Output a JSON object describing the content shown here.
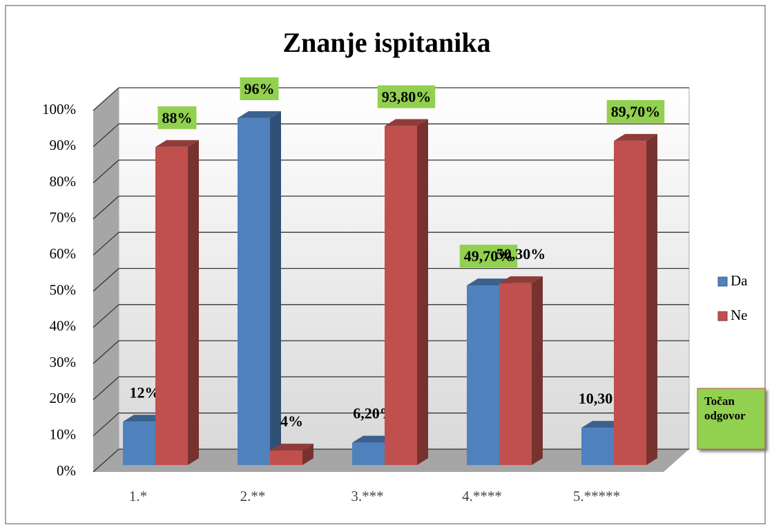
{
  "chart_data": {
    "type": "bar3d",
    "title": "Znanje ispitanika",
    "categories": [
      "1.*",
      "2.**",
      "3.***",
      "4.****",
      "5.*****"
    ],
    "series": [
      {
        "name": "Da",
        "color": "#4f81bd",
        "values": [
          12,
          96,
          6.2,
          49.7,
          10.3
        ],
        "value_labels": [
          "12%",
          "96%",
          "6,20%",
          "49,70%",
          "10,30%"
        ],
        "highlighted": [
          false,
          true,
          false,
          true,
          false
        ]
      },
      {
        "name": "Ne",
        "color": "#c0504d",
        "values": [
          88,
          4,
          93.8,
          50.3,
          89.7
        ],
        "value_labels": [
          "88%",
          "4%",
          "93,80%",
          "50,30%",
          "89,70%"
        ],
        "highlighted": [
          true,
          false,
          true,
          false,
          true
        ]
      }
    ],
    "highlight_color": "#92d050",
    "annotation": "Točan odgovor",
    "ylim": [
      0,
      100
    ],
    "yticks": [
      {
        "value": 0,
        "label": "0%"
      },
      {
        "value": 10,
        "label": "10%"
      },
      {
        "value": 20,
        "label": "20%"
      },
      {
        "value": 30,
        "label": "30%"
      },
      {
        "value": 40,
        "label": "40%"
      },
      {
        "value": 50,
        "label": "50%"
      },
      {
        "value": 60,
        "label": "60%"
      },
      {
        "value": 70,
        "label": "70%"
      },
      {
        "value": 80,
        "label": "80%"
      },
      {
        "value": 90,
        "label": "90%"
      },
      {
        "value": 100,
        "label": "100%"
      }
    ],
    "grid": true,
    "legend": "right"
  }
}
